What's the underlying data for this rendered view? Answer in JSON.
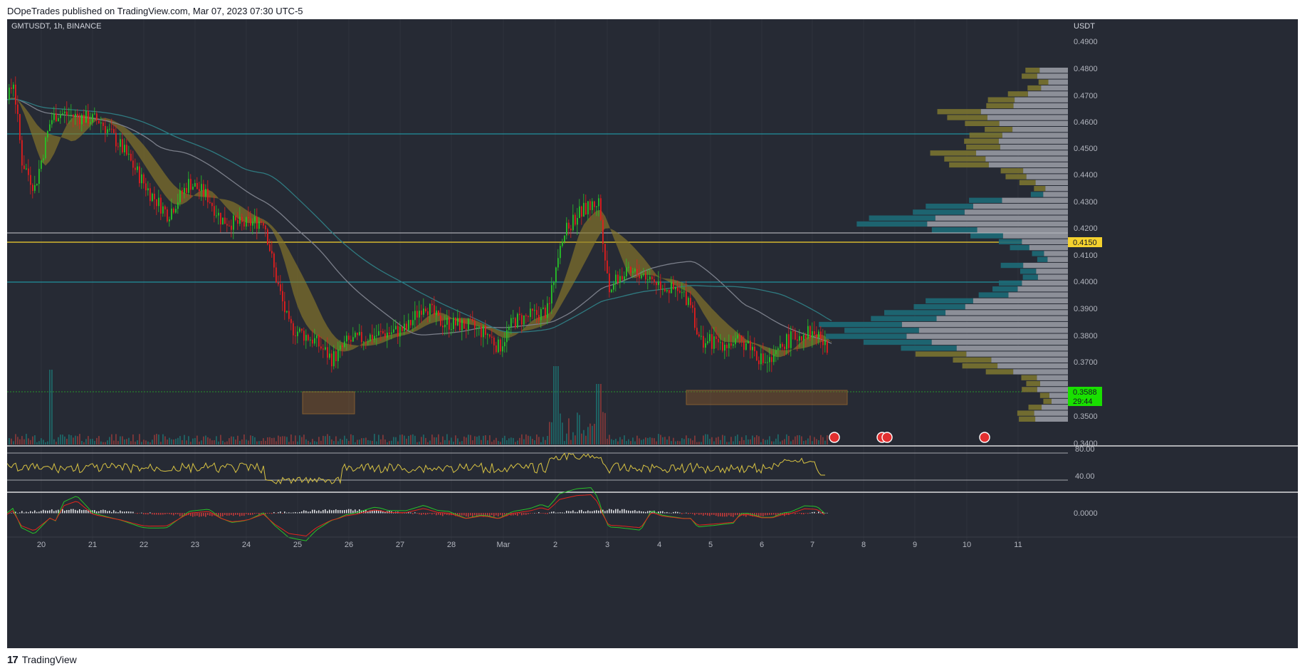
{
  "header": {
    "published_by": "DOpeTrades published on TradingView.com, Mar 07, 2023 07:30 UTC-5"
  },
  "footer": {
    "brand": "TradingView"
  },
  "chart": {
    "symbol": "GMTUSDT, 1h, BINANCE",
    "currency": "USDT",
    "price_ticks": [
      "0.4900",
      "0.4800",
      "0.4700",
      "0.4600",
      "0.4500",
      "0.4400",
      "0.4300",
      "0.4200",
      "0.4100",
      "0.4000",
      "0.3900",
      "0.3800",
      "0.3700",
      "0.3500",
      "0.3400"
    ],
    "last_price": "0.3588",
    "countdown": "29:44",
    "level_label": "0.4150",
    "rsi_ticks": [
      "80.00",
      "40.00"
    ],
    "macd_ticks": [
      "0.0000"
    ],
    "x_ticks": [
      "20",
      "21",
      "22",
      "23",
      "24",
      "25",
      "26",
      "27",
      "28",
      "Mar",
      "2",
      "3",
      "4",
      "5",
      "6",
      "7",
      "8",
      "9",
      "10",
      "11"
    ],
    "colors": {
      "background": "#262a34",
      "up": "#26c227",
      "down": "#e21d1d",
      "cyan_line": "#1fa9b8",
      "yellow_line": "#f5d22e",
      "white_line": "#c9cbd1",
      "box": "#f59a2e",
      "rsi": "#d8c343",
      "last_price_bg": "#19e000"
    }
  },
  "chart_data": {
    "type": "candlestick",
    "symbol": "GMTUSDT",
    "interval": "1h",
    "exchange": "BINANCE",
    "ylim": [
      0.34,
      0.495
    ],
    "horizontal_levels": [
      0.455,
      0.4175,
      0.415,
      0.3998
    ],
    "zones": [
      {
        "x_start": "Feb 25 12:00",
        "x_end": "Feb 26 02:00",
        "low": 0.353,
        "high": 0.361
      },
      {
        "x_start": "Mar 4 18:00",
        "x_end": "Mar 7 18:00",
        "low": 0.3555,
        "high": 0.3605
      }
    ],
    "last_price": 0.3588
  }
}
